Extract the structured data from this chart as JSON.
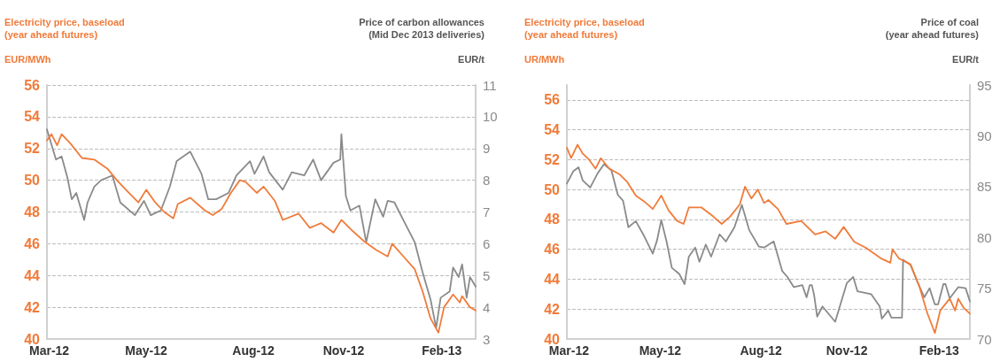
{
  "chart_data": [
    {
      "type": "line",
      "ylabel": "Electricity price, baseload\n(year ahead futures)\n\nEUR/MWh",
      "y2label": "Price of carbon allowances\n(Mid Dec 2013 deliveries)\n\nEUR/t",
      "xlim": [
        "2012-03-01",
        "2013-03-16"
      ],
      "xticks": [
        {
          "value": "2012-03-03",
          "label": "Mar-12"
        },
        {
          "value": "2012-05-28",
          "label": "May-12"
        },
        {
          "value": "2012-08-31",
          "label": "Aug-12"
        },
        {
          "value": "2012-11-19",
          "label": "Nov-12"
        },
        {
          "value": "2013-02-14",
          "label": "Feb-13"
        }
      ],
      "ylim": [
        40,
        56
      ],
      "yticks": [
        40,
        42,
        44,
        46,
        48,
        50,
        52,
        54,
        56
      ],
      "y2lim": [
        3,
        11
      ],
      "y2ticks": [
        3,
        4,
        5,
        6,
        7,
        8,
        9,
        10,
        11
      ],
      "grid": "y",
      "series": [
        {
          "color": "#f07b3a",
          "x": [
            "2012-03-01",
            "2012-03-05",
            "2012-03-10",
            "2012-03-14",
            "2012-03-22",
            "2012-04-01",
            "2012-04-12",
            "2012-04-24",
            "2012-05-02",
            "2012-05-10",
            "2012-05-21",
            "2012-05-28",
            "2012-06-05",
            "2012-06-13",
            "2012-06-21",
            "2012-06-25",
            "2012-07-06",
            "2012-07-19",
            "2012-07-26",
            "2012-08-03",
            "2012-08-11",
            "2012-08-19",
            "2012-08-24",
            "2012-09-03",
            "2012-09-09",
            "2012-09-19",
            "2012-09-26",
            "2012-10-10",
            "2012-10-20",
            "2012-10-30",
            "2012-11-10",
            "2012-11-17",
            "2012-11-27",
            "2012-12-08",
            "2012-12-18",
            "2012-12-28",
            "2013-01-01",
            "2013-01-11",
            "2013-01-21",
            "2013-01-28",
            "2013-02-04",
            "2013-02-11",
            "2013-02-16",
            "2013-02-24",
            "2013-03-02",
            "2013-03-04",
            "2013-03-11",
            "2013-03-16"
          ],
          "values": [
            52.5,
            52.9,
            52.2,
            52.9,
            52.3,
            51.4,
            51.3,
            50.7,
            50.0,
            49.4,
            48.6,
            49.4,
            48.6,
            48.0,
            47.6,
            48.5,
            48.9,
            48.1,
            47.8,
            48.2,
            49.2,
            50.0,
            49.9,
            49.2,
            49.6,
            48.7,
            47.5,
            47.9,
            47.0,
            47.3,
            46.7,
            47.5,
            46.8,
            46.1,
            45.6,
            45.2,
            46.0,
            45.2,
            44.4,
            43.0,
            41.3,
            40.4,
            42.0,
            42.8,
            42.3,
            42.7,
            42.0,
            41.8
          ]
        },
        {
          "color": "#8a8a8a",
          "axis": "y2",
          "x": [
            "2012-03-01",
            "2012-03-09",
            "2012-03-14",
            "2012-03-19",
            "2012-03-23",
            "2012-03-27",
            "2012-04-03",
            "2012-04-06",
            "2012-04-12",
            "2012-04-18",
            "2012-04-28",
            "2012-05-05",
            "2012-05-18",
            "2012-05-26",
            "2012-06-01",
            "2012-06-10",
            "2012-06-18",
            "2012-06-24",
            "2012-07-06",
            "2012-07-16",
            "2012-07-22",
            "2012-07-29",
            "2012-08-09",
            "2012-08-16",
            "2012-08-28",
            "2012-09-01",
            "2012-09-09",
            "2012-09-14",
            "2012-09-26",
            "2012-10-04",
            "2012-10-15",
            "2012-10-23",
            "2012-10-30",
            "2012-11-10",
            "2012-11-16",
            "2012-11-17",
            "2012-11-21",
            "2012-11-25",
            "2012-12-03",
            "2012-12-09",
            "2012-12-17",
            "2012-12-24",
            "2012-12-28",
            "2013-01-03",
            "2013-01-13",
            "2013-01-21",
            "2013-01-28",
            "2013-02-04",
            "2013-02-09",
            "2013-02-13",
            "2013-02-21",
            "2013-02-24",
            "2013-03-01",
            "2013-03-04",
            "2013-03-08",
            "2013-03-11",
            "2013-03-16"
          ],
          "values": [
            9.6,
            8.65,
            8.75,
            8.1,
            7.4,
            7.6,
            6.75,
            7.3,
            7.8,
            8.0,
            8.15,
            7.3,
            6.9,
            7.35,
            6.9,
            7.05,
            7.8,
            8.6,
            8.9,
            8.2,
            7.4,
            7.4,
            7.6,
            8.15,
            8.6,
            8.2,
            8.75,
            8.25,
            7.7,
            8.25,
            8.15,
            8.65,
            8.0,
            8.55,
            8.65,
            9.45,
            7.5,
            7.05,
            7.2,
            6.05,
            7.4,
            6.85,
            7.35,
            7.3,
            6.6,
            6.05,
            5.1,
            4.25,
            3.35,
            4.3,
            4.5,
            5.25,
            4.95,
            5.35,
            4.3,
            4.95,
            4.65
          ]
        }
      ]
    },
    {
      "type": "line",
      "ylabel": "Electricity price, baseload\n(year ahead futures)\n\nUR/MWh",
      "y2label": "Price of coal\n(year ahead futures)\n\nEUR/t",
      "xlim": [
        "2012-03-01",
        "2013-03-16"
      ],
      "xticks": [
        {
          "value": "2012-03-03",
          "label": "Mar-12"
        },
        {
          "value": "2012-05-28",
          "label": "May-12"
        },
        {
          "value": "2012-08-31",
          "label": "Aug-12"
        },
        {
          "value": "2012-11-20",
          "label": "Nov-12"
        },
        {
          "value": "2013-02-15",
          "label": "Feb-13"
        }
      ],
      "ylim": [
        40,
        57
      ],
      "yticks": [
        40,
        42,
        44,
        46,
        48,
        50,
        52,
        54,
        56
      ],
      "y2lim": [
        70,
        95
      ],
      "y2ticks": [
        70,
        75,
        80,
        85,
        90,
        95
      ],
      "grid": "y",
      "series": [
        {
          "color": "#f07b3a",
          "x": [
            "2012-03-01",
            "2012-03-05",
            "2012-03-11",
            "2012-03-16",
            "2012-03-22",
            "2012-03-28",
            "2012-04-02",
            "2012-04-10",
            "2012-04-20",
            "2012-04-27",
            "2012-05-05",
            "2012-05-13",
            "2012-05-21",
            "2012-05-29",
            "2012-06-05",
            "2012-06-13",
            "2012-06-19",
            "2012-06-24",
            "2012-07-06",
            "2012-07-17",
            "2012-07-25",
            "2012-08-02",
            "2012-08-11",
            "2012-08-16",
            "2012-08-22",
            "2012-08-28",
            "2012-09-03",
            "2012-09-07",
            "2012-09-16",
            "2012-09-24",
            "2012-10-08",
            "2012-10-21",
            "2012-10-31",
            "2012-11-09",
            "2012-11-17",
            "2012-11-27",
            "2012-12-08",
            "2012-12-22",
            "2012-12-31",
            "2013-01-02",
            "2013-01-08",
            "2013-01-19",
            "2013-01-27",
            "2013-02-04",
            "2013-02-11",
            "2013-02-16",
            "2013-02-25",
            "2013-03-02",
            "2013-03-05",
            "2013-03-10",
            "2013-03-16"
          ],
          "values": [
            52.8,
            52.1,
            53.0,
            52.4,
            52.0,
            51.4,
            52.1,
            51.4,
            51.0,
            50.5,
            49.6,
            49.2,
            48.7,
            49.6,
            48.6,
            47.9,
            47.7,
            48.8,
            48.8,
            48.2,
            47.7,
            48.2,
            49.0,
            50.2,
            49.4,
            50.0,
            49.1,
            49.3,
            48.7,
            47.7,
            47.9,
            47.0,
            47.2,
            46.7,
            47.5,
            46.5,
            46.1,
            45.4,
            45.1,
            46.0,
            45.4,
            45.0,
            43.6,
            41.7,
            40.4,
            41.9,
            42.7,
            41.9,
            42.7,
            42.1,
            41.7
          ]
        },
        {
          "color": "#8a8a8a",
          "axis": "y2",
          "x": [
            "2012-03-01",
            "2012-03-07",
            "2012-03-12",
            "2012-03-16",
            "2012-03-23",
            "2012-03-30",
            "2012-04-05",
            "2012-04-12",
            "2012-04-18",
            "2012-04-23",
            "2012-04-28",
            "2012-05-05",
            "2012-05-13",
            "2012-05-21",
            "2012-05-25",
            "2012-05-29",
            "2012-06-03",
            "2012-06-08",
            "2012-06-15",
            "2012-06-20",
            "2012-06-24",
            "2012-06-30",
            "2012-07-04",
            "2012-07-10",
            "2012-07-15",
            "2012-07-23",
            "2012-07-29",
            "2012-08-06",
            "2012-08-13",
            "2012-08-20",
            "2012-08-29",
            "2012-09-03",
            "2012-09-12",
            "2012-09-20",
            "2012-09-25",
            "2012-10-01",
            "2012-10-09",
            "2012-10-13",
            "2012-10-16",
            "2012-10-18",
            "2012-10-20",
            "2012-10-23",
            "2012-10-28",
            "2012-11-09",
            "2012-11-20",
            "2012-11-26",
            "2012-11-30",
            "2012-12-13",
            "2012-12-21",
            "2012-12-23",
            "2012-12-29",
            "2013-01-01",
            "2013-01-11",
            "2013-01-12",
            "2013-01-19",
            "2013-01-26",
            "2013-02-01",
            "2013-02-06",
            "2013-02-11",
            "2013-02-14",
            "2013-02-19",
            "2013-02-21",
            "2013-02-25",
            "2013-03-05",
            "2013-03-12",
            "2013-03-16"
          ],
          "values": [
            85.3,
            86.5,
            86.9,
            85.6,
            84.9,
            86.3,
            87.2,
            86.6,
            84.2,
            83.6,
            81.0,
            81.6,
            80.1,
            78.4,
            79.7,
            81.7,
            79.6,
            77.0,
            76.4,
            75.4,
            78.1,
            79.0,
            77.6,
            79.3,
            78.1,
            80.3,
            79.6,
            81.0,
            83.2,
            80.7,
            79.1,
            79.0,
            79.6,
            76.7,
            76.1,
            75.1,
            75.3,
            74.1,
            75.3,
            75.3,
            74.4,
            72.2,
            73.2,
            71.7,
            75.5,
            76.1,
            74.7,
            74.4,
            73.2,
            72.0,
            72.8,
            72.1,
            72.1,
            77.8,
            77.3,
            75.5,
            74.1,
            75.0,
            73.4,
            73.4,
            75.4,
            75.4,
            74.0,
            75.1,
            75.0,
            73.7
          ]
        }
      ]
    }
  ]
}
